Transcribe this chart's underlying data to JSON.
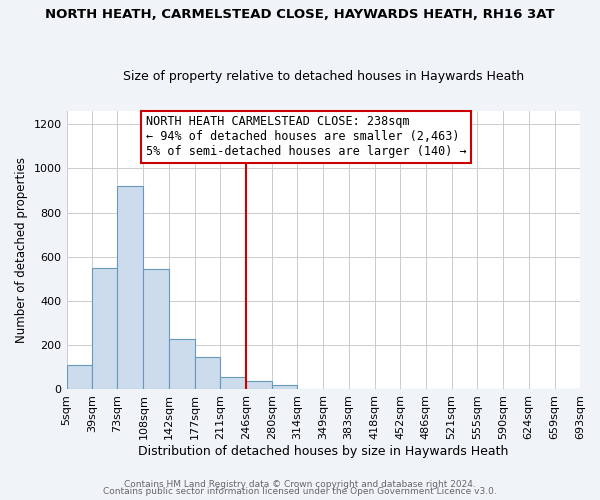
{
  "title": "NORTH HEATH, CARMELSTEAD CLOSE, HAYWARDS HEATH, RH16 3AT",
  "subtitle": "Size of property relative to detached houses in Haywards Heath",
  "xlabel": "Distribution of detached houses by size in Haywards Heath",
  "ylabel": "Number of detached properties",
  "bar_color": "#cddcec",
  "bar_edge_color": "#6699bb",
  "vline_x": 246,
  "vline_color": "#cc0000",
  "bin_edges": [
    5,
    39,
    73,
    108,
    142,
    177,
    211,
    246,
    280,
    314,
    349,
    383,
    418,
    452,
    486,
    521,
    555,
    590,
    624,
    659,
    693
  ],
  "bin_labels": [
    "5sqm",
    "39sqm",
    "73sqm",
    "108sqm",
    "142sqm",
    "177sqm",
    "211sqm",
    "246sqm",
    "280sqm",
    "314sqm",
    "349sqm",
    "383sqm",
    "418sqm",
    "452sqm",
    "486sqm",
    "521sqm",
    "555sqm",
    "590sqm",
    "624sqm",
    "659sqm",
    "693sqm"
  ],
  "counts": [
    110,
    550,
    920,
    545,
    225,
    145,
    55,
    35,
    20,
    0,
    0,
    0,
    0,
    0,
    0,
    0,
    0,
    0,
    0,
    0
  ],
  "ylim": [
    0,
    1260
  ],
  "yticks": [
    0,
    200,
    400,
    600,
    800,
    1000,
    1200
  ],
  "annotation_title": "NORTH HEATH CARMELSTEAD CLOSE: 238sqm",
  "annotation_line1": "← 94% of detached houses are smaller (2,463)",
  "annotation_line2": "5% of semi-detached houses are larger (140) →",
  "footer1": "Contains HM Land Registry data © Crown copyright and database right 2024.",
  "footer2": "Contains public sector information licensed under the Open Government Licence v3.0.",
  "background_color": "#f0f4f8",
  "plot_bg_color": "#ffffff"
}
